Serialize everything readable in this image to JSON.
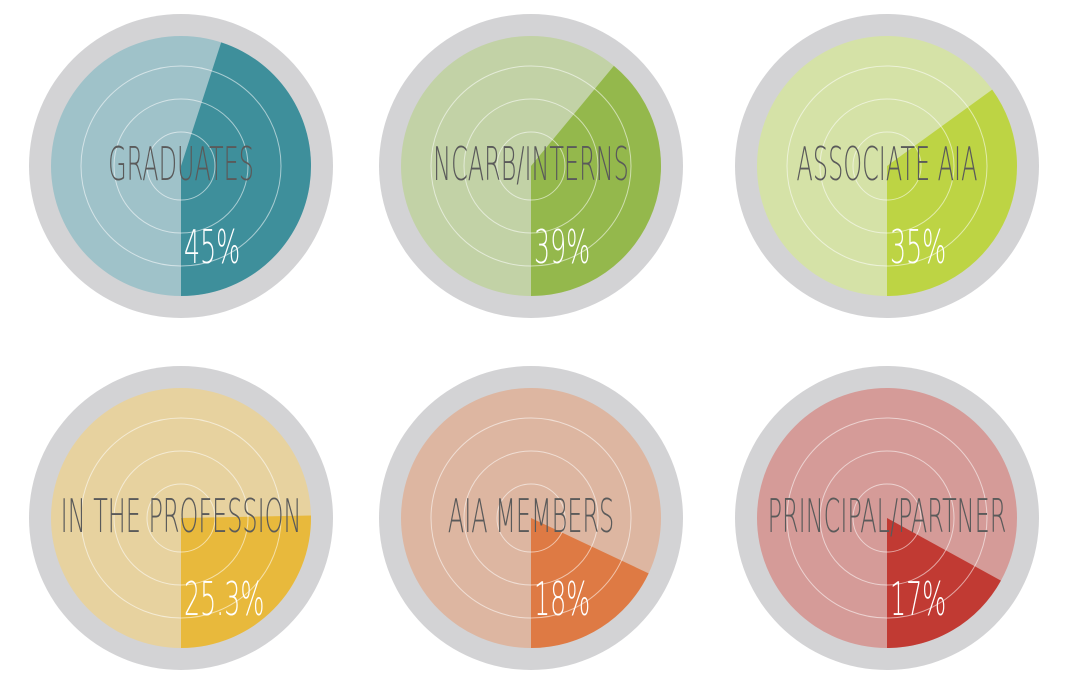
{
  "chart_data": {
    "type": "gauge",
    "categories": [
      "GRADUATES",
      "NCARB/INTERNS",
      "ASSOCIATE AIA",
      "IN THE PROFESSION",
      "AIA MEMBERS",
      "PRINCIPAL/PARTNER"
    ],
    "values": [
      45,
      39,
      35,
      25.3,
      18,
      17
    ],
    "value_labels": [
      "45%",
      "39%",
      "35%",
      "25.3%",
      "18%",
      "17%"
    ],
    "colors": [
      "#3e8f9b",
      "#94b84c",
      "#bdd444",
      "#e8b93c",
      "#de7a44",
      "#c13a33"
    ],
    "background_colors": [
      "#9fc2c9",
      "#c2d2a6",
      "#d5e2a7",
      "#e7d29f",
      "#ddb6a1",
      "#d59b98"
    ]
  }
}
